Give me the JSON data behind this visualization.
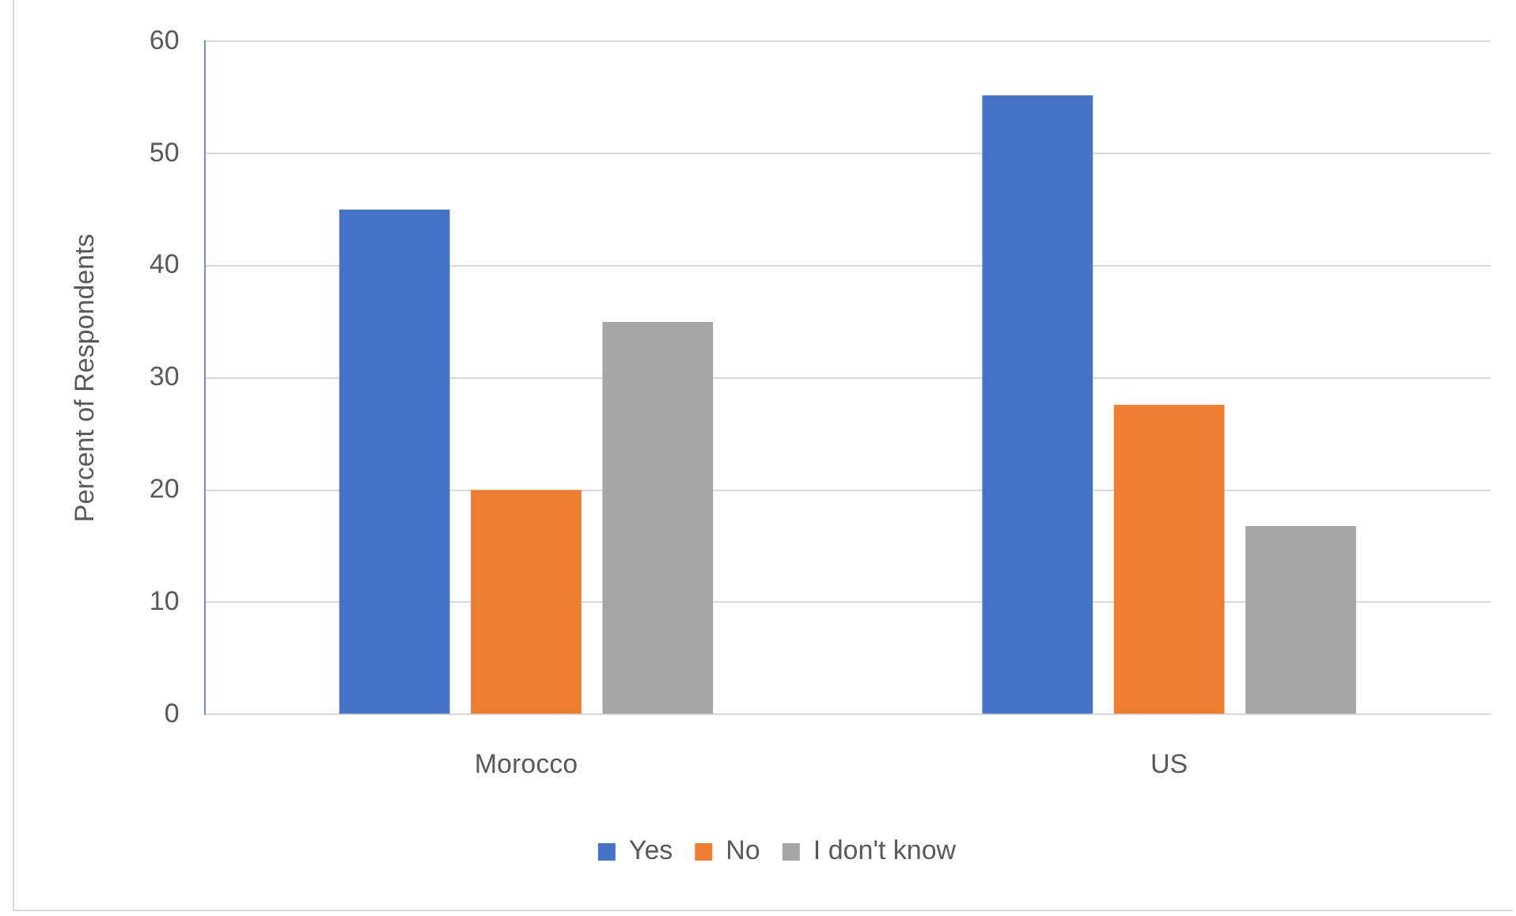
{
  "chart_data": {
    "type": "bar",
    "ylabel": "Percent of Respondents",
    "categories": [
      "Morocco",
      "US"
    ],
    "series": [
      {
        "name": "Yes",
        "color": "#4472c4",
        "values": [
          45,
          55.2
        ]
      },
      {
        "name": "No",
        "color": "#ed7d31",
        "values": [
          20,
          27.6
        ]
      },
      {
        "name": "I don't know",
        "color": "#a5a5a5",
        "values": [
          35,
          16.8
        ]
      }
    ],
    "ylim": [
      0,
      60
    ],
    "yticks": [
      0,
      10,
      20,
      30,
      40,
      50,
      60
    ],
    "grid": "y",
    "legend": "bottom"
  }
}
